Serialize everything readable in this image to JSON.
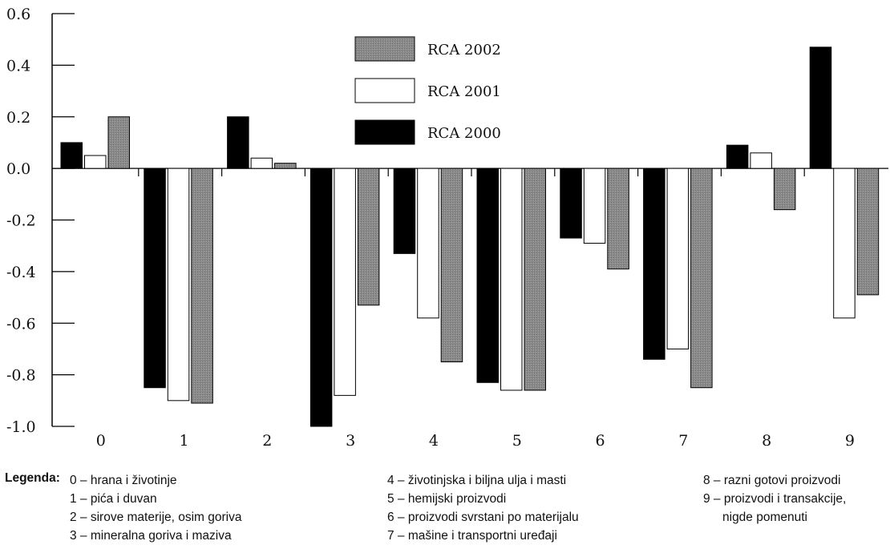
{
  "chart_data": {
    "type": "bar",
    "categories": [
      "0",
      "1",
      "2",
      "3",
      "4",
      "5",
      "6",
      "7",
      "8",
      "9"
    ],
    "series": [
      {
        "name": "RCA 2000",
        "color": "#000000",
        "values": [
          0.1,
          -0.85,
          0.2,
          -1.0,
          -0.33,
          -0.83,
          -0.27,
          -0.74,
          0.09,
          0.47
        ]
      },
      {
        "name": "RCA 2001",
        "color": "#ffffff",
        "values": [
          0.05,
          -0.9,
          0.04,
          -0.88,
          -0.58,
          -0.86,
          -0.29,
          -0.7,
          0.06,
          -0.58
        ]
      },
      {
        "name": "RCA 2002",
        "color": "#888888",
        "values": [
          0.2,
          -0.91,
          0.02,
          -0.53,
          -0.75,
          -0.86,
          -0.39,
          -0.85,
          -0.16,
          -0.49
        ]
      }
    ],
    "y_ticks": [
      "0.6",
      "0.4",
      "0.2",
      "0.0",
      "-0.2",
      "-0.4",
      "-0.6",
      "-0.8",
      "-1.0"
    ],
    "ylim": [
      -1.0,
      0.6
    ],
    "legend_order": [
      "RCA 2002",
      "RCA 2001",
      "RCA 2000"
    ],
    "legend_position": "top-center",
    "grid": false
  },
  "category_legend": {
    "title": "Legenda:",
    "columns": [
      [
        "0 – hrana i životinje",
        "1 – pića i duvan",
        "2 – sirove materije, osim goriva",
        "3 – mineralna goriva i maziva"
      ],
      [
        "4 – životinjska i biljna ulja i masti",
        "5 – hemijski proizvodi",
        "6 – proizvodi svrstani po materijalu",
        "7 – mašine i transportni uređaji"
      ],
      [
        "8 – razni gotovi proizvodi",
        "9 – proizvodi i transakcije,",
        "nigde pomenuti"
      ]
    ]
  }
}
